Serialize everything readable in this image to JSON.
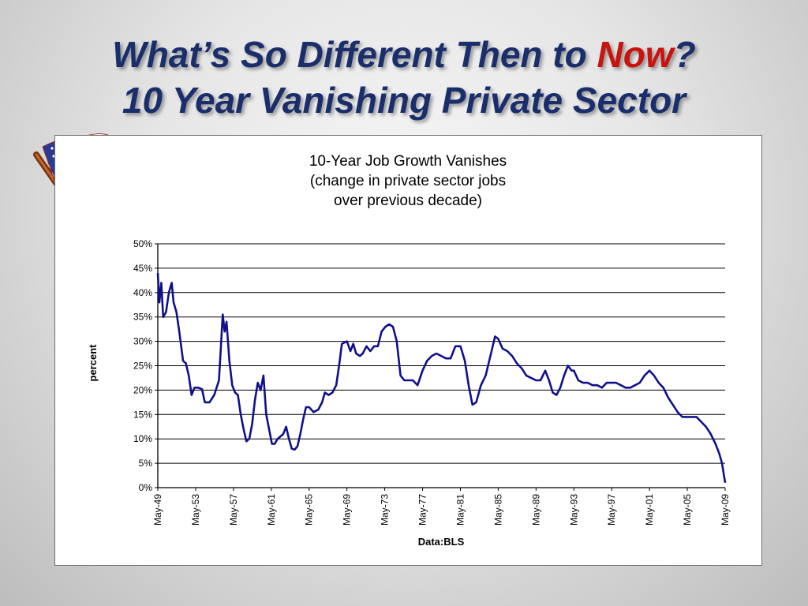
{
  "slide": {
    "title_line1_prefix": "What’s So Different Then to ",
    "title_line1_accent": "Now",
    "title_line1_suffix": "?",
    "title_line2": "10 Year Vanishing Private Sector",
    "accent_color": "#c8140f",
    "title_color": "#1a2e6b",
    "decoration_icon": "american-flag-icon"
  },
  "chart_data": {
    "type": "line",
    "title_lines": [
      "10-Year Job Growth Vanishes",
      "(change in private sector jobs",
      "over previous decade)"
    ],
    "xlabel": "Data:BLS",
    "ylabel": "percent",
    "ylim": [
      0,
      50
    ],
    "yticks": [
      0,
      5,
      10,
      15,
      20,
      25,
      30,
      35,
      40,
      45,
      50
    ],
    "ytick_labels": [
      "0%",
      "5%",
      "10%",
      "15%",
      "20%",
      "25%",
      "30%",
      "35%",
      "40%",
      "45%",
      "50%"
    ],
    "xlim": [
      1949.33,
      2009.33
    ],
    "xticks": [
      1949.33,
      1953.33,
      1957.33,
      1961.33,
      1965.33,
      1969.33,
      1973.33,
      1977.33,
      1981.33,
      1985.33,
      1989.33,
      1993.33,
      1997.33,
      2001.33,
      2005.33,
      2009.33
    ],
    "xtick_labels": [
      "May-49",
      "May-53",
      "May-57",
      "May-61",
      "May-65",
      "May-69",
      "May-73",
      "May-77",
      "May-81",
      "May-85",
      "May-89",
      "May-93",
      "May-97",
      "May-01",
      "May-05",
      "May-09"
    ],
    "grid": "horizontal",
    "legend": "none",
    "line_color": "#10108c",
    "series": [
      {
        "x": [
          1949.33,
          1949.5,
          1949.7,
          1949.9,
          1950.2,
          1950.5,
          1950.8,
          1951.0,
          1951.3,
          1951.6,
          1952.0,
          1952.3,
          1952.6,
          1952.9,
          1953.2,
          1953.6,
          1954.0,
          1954.3,
          1954.8,
          1955.3,
          1955.8,
          1956.2,
          1956.4,
          1956.6,
          1956.9,
          1957.2,
          1957.5,
          1957.8,
          1958.1,
          1958.4,
          1958.7,
          1959.0,
          1959.3,
          1959.6,
          1959.9,
          1960.2,
          1960.5,
          1960.8,
          1961.1,
          1961.4,
          1961.7,
          1962.0,
          1962.3,
          1962.6,
          1962.9,
          1963.2,
          1963.5,
          1963.8,
          1964.1,
          1964.4,
          1964.7,
          1965.0,
          1965.33,
          1965.8,
          1966.3,
          1966.7,
          1967.0,
          1967.4,
          1967.8,
          1968.2,
          1968.5,
          1968.8,
          1969.33,
          1969.7,
          1970.0,
          1970.3,
          1970.7,
          1971.0,
          1971.4,
          1971.8,
          1972.2,
          1972.6,
          1973.0,
          1973.4,
          1973.8,
          1974.2,
          1974.6,
          1975.0,
          1975.4,
          1975.8,
          1976.3,
          1976.8,
          1977.33,
          1977.8,
          1978.3,
          1978.8,
          1979.3,
          1979.8,
          1980.3,
          1980.8,
          1981.33,
          1981.8,
          1982.2,
          1982.6,
          1983.0,
          1983.5,
          1984.0,
          1984.5,
          1985.0,
          1985.33,
          1985.8,
          1986.3,
          1986.8,
          1987.3,
          1987.8,
          1988.3,
          1988.8,
          1989.33,
          1989.8,
          1990.3,
          1990.7,
          1991.1,
          1991.5,
          1991.9,
          1992.3,
          1992.7,
          1993.1,
          1993.33,
          1993.8,
          1994.3,
          1994.8,
          1995.3,
          1995.8,
          1996.3,
          1996.8,
          1997.33,
          1997.8,
          1998.3,
          1998.8,
          1999.3,
          1999.8,
          2000.3,
          2000.8,
          2001.33,
          2001.8,
          2002.3,
          2002.8,
          2003.3,
          2003.8,
          2004.3,
          2004.8,
          2005.33,
          2005.8,
          2006.3,
          2006.8,
          2007.3,
          2007.8,
          2008.3,
          2008.7,
          2009.0,
          2009.33
        ],
        "values": [
          44,
          38,
          42,
          35,
          36,
          40,
          42,
          38,
          36,
          32,
          26,
          25.5,
          23,
          19,
          20.5,
          20.5,
          20.2,
          17.5,
          17.5,
          19,
          22,
          35.5,
          32,
          34,
          26,
          21,
          19.5,
          19,
          15,
          12,
          9.5,
          10,
          13,
          18,
          21.5,
          20,
          23,
          15,
          12,
          9,
          9,
          10,
          10.5,
          11,
          12.5,
          10,
          8,
          7.8,
          8.5,
          11,
          14,
          16.5,
          16.5,
          15.5,
          16,
          17.5,
          19.5,
          19,
          19.5,
          21,
          25,
          29.5,
          30,
          28,
          29.5,
          27.5,
          27,
          27.5,
          29,
          28,
          29,
          29,
          32,
          33,
          33.5,
          33,
          30,
          23,
          22,
          22,
          22,
          21,
          24,
          26,
          27,
          27.5,
          27,
          26.5,
          26.5,
          29,
          29,
          26,
          21,
          17,
          17.5,
          21,
          23,
          27,
          31,
          30.5,
          28.5,
          28,
          27,
          25.5,
          24.5,
          23,
          22.5,
          22,
          22,
          24,
          22,
          19.5,
          19,
          20.5,
          23,
          25,
          24,
          24,
          22,
          21.5,
          21.5,
          21,
          21,
          20.5,
          21.5,
          21.5,
          21.5,
          21,
          20.5,
          20.5,
          21,
          21.5,
          23,
          24,
          23,
          21.5,
          20.5,
          18.5,
          17,
          15.5,
          14.5,
          14.5,
          14.5,
          14.5,
          13.5,
          12.5,
          11,
          9,
          7,
          5,
          1
        ]
      }
    ]
  }
}
